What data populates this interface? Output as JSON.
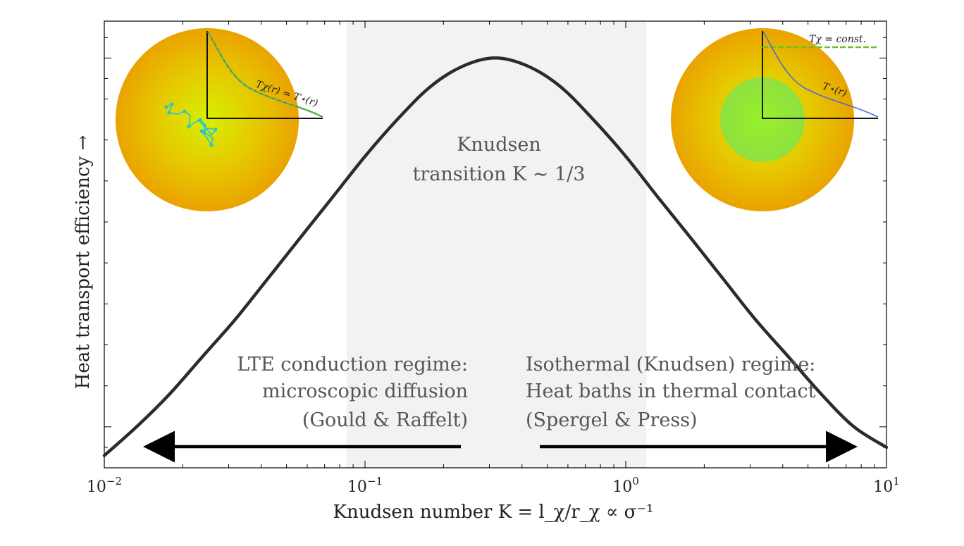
{
  "chart_data": {
    "type": "line",
    "title": "",
    "xlabel": "Knudsen number K = l_χ/r_χ ∝ σ⁻¹",
    "ylabel": "Heat transport efficiency →",
    "xscale": "log",
    "xlim": [
      0.01,
      10
    ],
    "ylim": [
      0,
      1.09
    ],
    "x_ticks": [
      {
        "value": 0.01,
        "base": "10",
        "exp": "−2"
      },
      {
        "value": 0.1,
        "base": "10",
        "exp": "−1"
      },
      {
        "value": 1,
        "base": "10",
        "exp": "0"
      },
      {
        "value": 10,
        "base": "10",
        "exp": "1"
      }
    ],
    "series": [
      {
        "x": [
          0.01,
          0.0133,
          0.0178,
          0.0237,
          0.0316,
          0.0422,
          0.0562,
          0.075,
          0.1,
          0.133,
          0.178,
          0.237,
          0.316,
          0.422,
          0.562,
          0.75,
          1.0,
          1.33,
          1.78,
          2.37,
          3.16,
          4.22,
          5.62,
          7.5,
          10.0
        ],
        "y": [
          0.03,
          0.1,
          0.18,
          0.27,
          0.36,
          0.46,
          0.56,
          0.66,
          0.76,
          0.85,
          0.93,
          0.98,
          1.0,
          0.98,
          0.93,
          0.85,
          0.76,
          0.66,
          0.56,
          0.46,
          0.36,
          0.27,
          0.18,
          0.1,
          0.05
        ]
      }
    ],
    "shaded_band": {
      "x_start": 0.085,
      "x_end": 1.2
    },
    "grid": false,
    "legend": "none"
  },
  "annotations": {
    "transition_line1": "Knudsen",
    "transition_line2": "transition K ∼ 1/3",
    "lte_line1": "LTE conduction regime:",
    "lte_line2": "microscopic diffusion",
    "lte_line3": "(Gould & Raffelt)",
    "iso_line1": "Isothermal (Knudsen) regime:",
    "iso_line2": "Heat baths in thermal contact",
    "iso_line3": "(Spergel & Press)"
  },
  "insets": {
    "left_label": "Tχ(r) = T⋆(r)",
    "right_top_label": "Tχ = const.",
    "right_curve_label": "T⋆(r)"
  },
  "colors": {
    "curve": "#2b2b2b",
    "band": "#f2f2f2",
    "star_outer": "#e8a800",
    "star_inner": "#d9ee00",
    "core_green": "#8ce830",
    "dm_walk": "#22c4d8",
    "profile_blue": "#4a6fd0",
    "profile_green": "#6abf2c"
  }
}
